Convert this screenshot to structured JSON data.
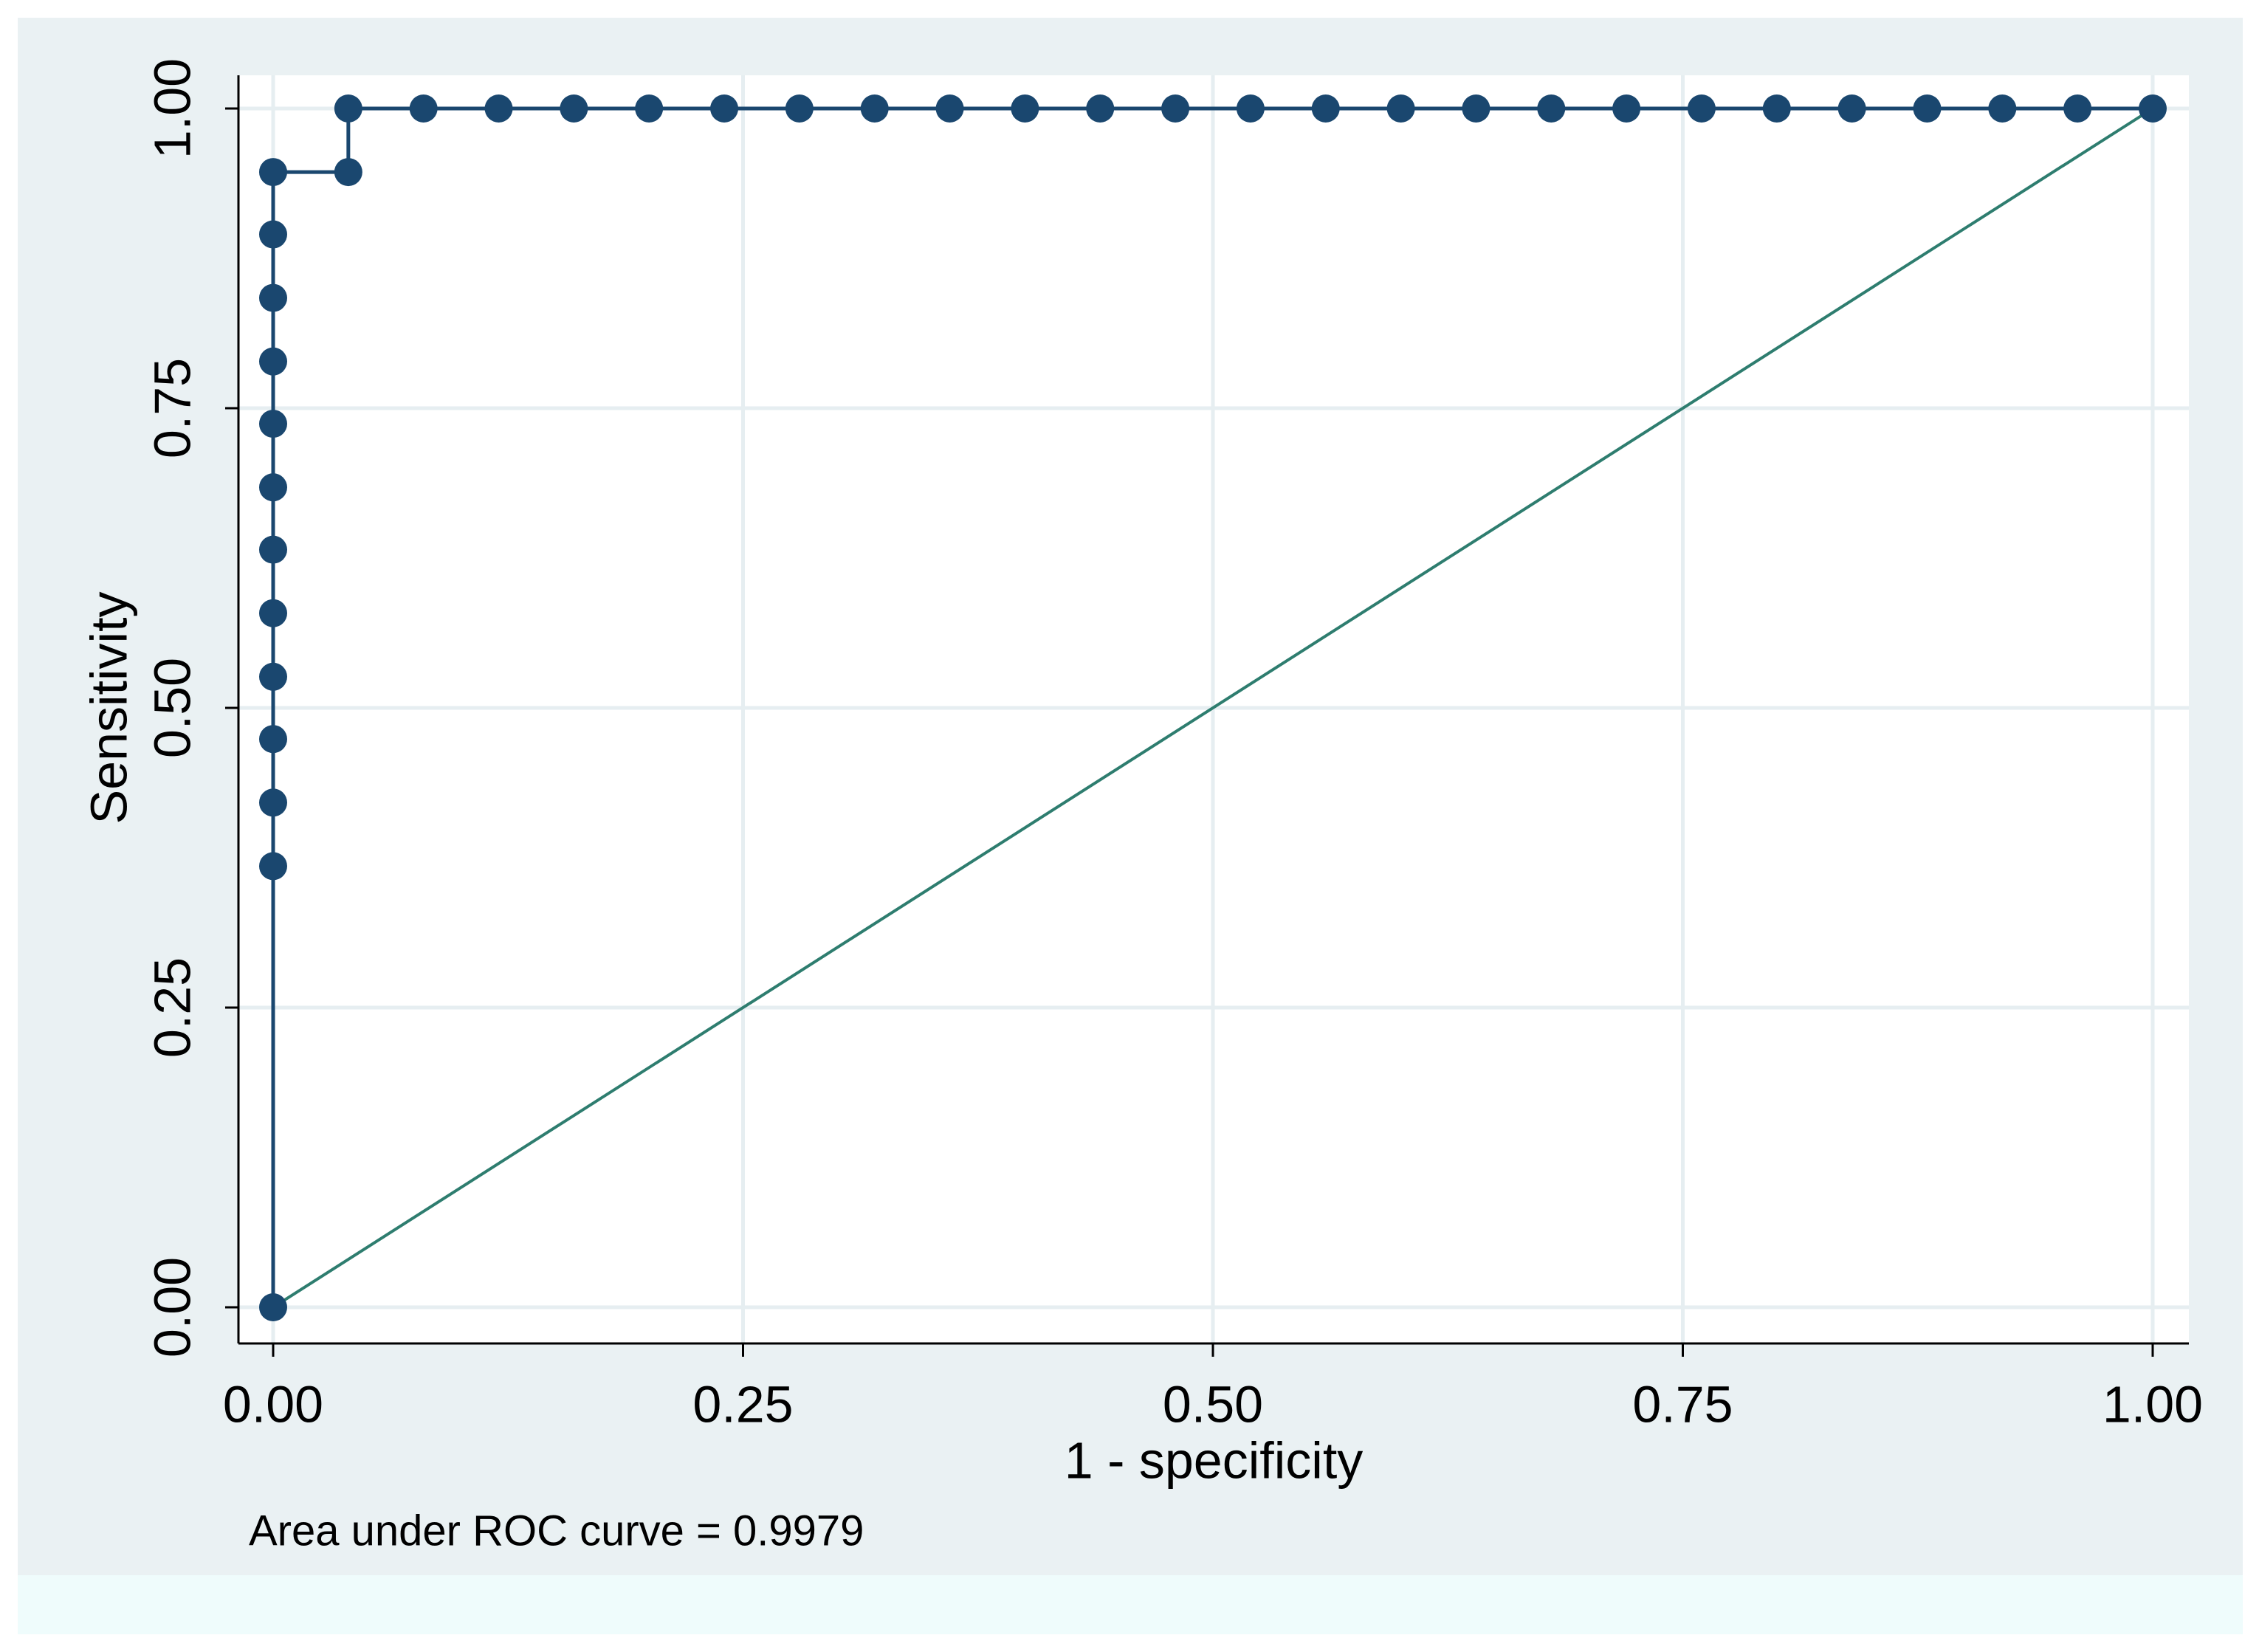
{
  "chart_data": {
    "type": "line",
    "xlabel": "1 - specificity",
    "ylabel": "Sensitivity",
    "note": "Area under ROC curve = 0.9979",
    "xlim": [
      0,
      1
    ],
    "ylim": [
      0,
      1
    ],
    "xticks": [
      {
        "value": 0,
        "label": "0.00"
      },
      {
        "value": 0.25,
        "label": "0.25"
      },
      {
        "value": 0.5,
        "label": "0.50"
      },
      {
        "value": 0.75,
        "label": "0.75"
      },
      {
        "value": 1,
        "label": "1.00"
      }
    ],
    "yticks": [
      {
        "value": 0,
        "label": "0.00"
      },
      {
        "value": 0.25,
        "label": "0.25"
      },
      {
        "value": 0.5,
        "label": "0.50"
      },
      {
        "value": 0.75,
        "label": "0.75"
      },
      {
        "value": 1,
        "label": "1.00"
      }
    ],
    "grid": true,
    "series": [
      {
        "color": "#1a476f",
        "markers": true,
        "x": [
          0,
          0,
          0,
          0,
          0,
          0,
          0,
          0,
          0,
          0,
          0,
          0,
          0,
          0.04,
          0.04,
          0.08,
          0.12,
          0.16,
          0.2,
          0.24,
          0.28,
          0.32,
          0.36,
          0.4,
          0.44,
          0.48,
          0.52,
          0.56,
          0.6,
          0.64,
          0.68,
          0.72,
          0.76,
          0.8,
          0.84,
          0.88,
          0.92,
          0.96,
          1
        ],
        "values": [
          0,
          0.368,
          0.421,
          0.474,
          0.526,
          0.579,
          0.632,
          0.684,
          0.737,
          0.789,
          0.842,
          0.895,
          0.947,
          0.947,
          1,
          1,
          1,
          1,
          1,
          1,
          1,
          1,
          1,
          1,
          1,
          1,
          1,
          1,
          1,
          1,
          1,
          1,
          1,
          1,
          1,
          1,
          1,
          1,
          1
        ]
      },
      {
        "color": "#2e7d6f",
        "markers": false,
        "x": [
          0,
          1
        ],
        "values": [
          0,
          1
        ]
      }
    ]
  }
}
